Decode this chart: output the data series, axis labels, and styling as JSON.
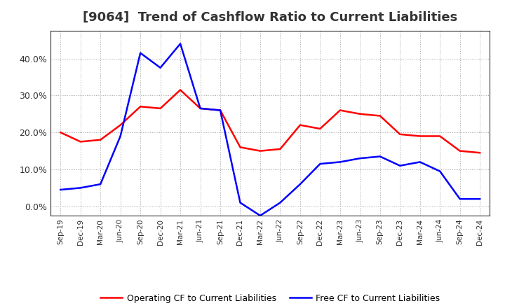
{
  "title": "[9064]  Trend of Cashflow Ratio to Current Liabilities",
  "x_labels": [
    "Sep-19",
    "Dec-19",
    "Mar-20",
    "Jun-20",
    "Sep-20",
    "Dec-20",
    "Mar-21",
    "Jun-21",
    "Sep-21",
    "Dec-21",
    "Mar-22",
    "Jun-22",
    "Sep-22",
    "Dec-22",
    "Mar-23",
    "Jun-23",
    "Sep-23",
    "Dec-23",
    "Mar-24",
    "Jun-24",
    "Sep-24",
    "Dec-24"
  ],
  "operating_cf": [
    0.2,
    0.175,
    0.18,
    0.22,
    0.27,
    0.265,
    0.315,
    0.265,
    0.26,
    0.16,
    0.15,
    0.155,
    0.22,
    0.21,
    0.26,
    0.25,
    0.245,
    0.195,
    0.19,
    0.19,
    0.15,
    0.145
  ],
  "free_cf": [
    0.045,
    0.05,
    0.06,
    0.19,
    0.415,
    0.375,
    0.44,
    0.265,
    0.26,
    0.01,
    -0.025,
    0.01,
    0.06,
    0.115,
    0.12,
    0.13,
    0.135,
    0.11,
    0.12,
    0.095,
    0.02,
    0.02
  ],
  "operating_cf_color": "#FF0000",
  "free_cf_color": "#0000FF",
  "ylim": [
    -0.025,
    0.475
  ],
  "yticks": [
    0.0,
    0.1,
    0.2,
    0.3,
    0.4
  ],
  "legend_operating": "Operating CF to Current Liabilities",
  "legend_free": "Free CF to Current Liabilities",
  "background_color": "#FFFFFF",
  "grid_color": "#999999",
  "title_fontsize": 13,
  "title_color": "#333333"
}
